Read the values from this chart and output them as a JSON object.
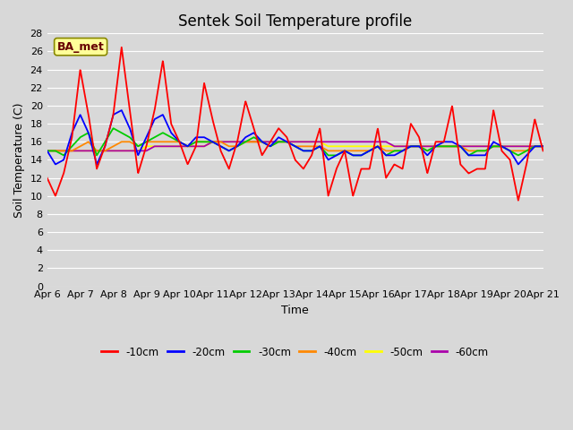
{
  "title": "Sentek Soil Temperature profile",
  "xlabel": "Time",
  "ylabel": "Soil Temperature (C)",
  "annotation": "BA_met",
  "ylim": [
    0,
    28
  ],
  "yticks": [
    0,
    2,
    4,
    6,
    8,
    10,
    12,
    14,
    16,
    18,
    20,
    22,
    24,
    26,
    28
  ],
  "x_labels": [
    "Apr 6",
    "Apr 7",
    "Apr 8",
    "Apr 9",
    "Apr 10",
    "Apr 11",
    "Apr 12",
    "Apr 13",
    "Apr 14",
    "Apr 15",
    "Apr 16",
    "Apr 17",
    "Apr 18",
    "Apr 19",
    "Apr 20",
    "Apr 21"
  ],
  "n_days": 15,
  "colors": {
    "-10cm": "#ff0000",
    "-20cm": "#0000ff",
    "-30cm": "#00cc00",
    "-40cm": "#ff8800",
    "-50cm": "#ffff00",
    "-60cm": "#aa00aa"
  },
  "background_color": "#d8d8d8",
  "plot_bg_color": "#d8d8d8",
  "grid_color": "#ffffff",
  "title_fontsize": 12,
  "axis_fontsize": 9,
  "tick_fontsize": 8,
  "linewidth": 1.3
}
